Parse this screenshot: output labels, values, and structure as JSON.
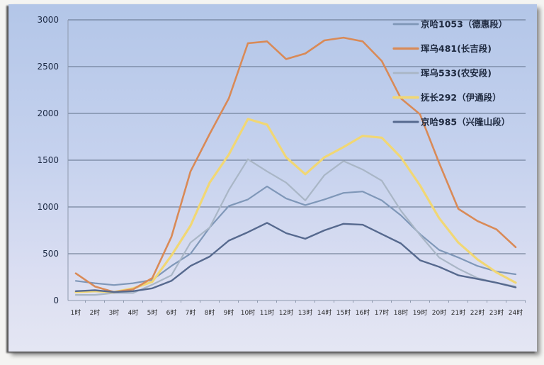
{
  "chart_data": {
    "type": "line",
    "title": "",
    "xlabel": "",
    "ylabel": "",
    "ylim": [
      0,
      3000
    ],
    "yticks": [
      0,
      500,
      1000,
      1500,
      2000,
      2500,
      3000
    ],
    "grid": true,
    "legend_position": "top-right (inside plot)",
    "categories": [
      "1时",
      "2时",
      "3时",
      "4时",
      "5时",
      "6时",
      "7时",
      "8时",
      "9时",
      "10时",
      "11时",
      "12时",
      "13时",
      "14时",
      "15时",
      "16时",
      "17时",
      "18时",
      "19时",
      "20时",
      "21时",
      "22时",
      "23时",
      "24时"
    ],
    "series": [
      {
        "name": "京哈1053（德惠段）",
        "color": "#7f97b8",
        "width": 2.2,
        "values": [
          210,
          185,
          165,
          185,
          220,
          370,
          500,
          780,
          1010,
          1080,
          1220,
          1090,
          1020,
          1080,
          1150,
          1165,
          1070,
          910,
          710,
          540,
          460,
          370,
          310,
          280
        ]
      },
      {
        "name": "珲乌481(长吉段)",
        "color": "#d98a57",
        "width": 2.6,
        "values": [
          290,
          150,
          90,
          120,
          240,
          680,
          1380,
          1780,
          2160,
          2750,
          2770,
          2580,
          2640,
          2780,
          2810,
          2770,
          2560,
          2160,
          1990,
          1470,
          980,
          850,
          760,
          570
        ]
      },
      {
        "name": "珲乌533(农安段)",
        "color": "#a9b6c6",
        "width": 2.2,
        "values": [
          60,
          60,
          80,
          80,
          170,
          270,
          620,
          780,
          1180,
          1510,
          1380,
          1260,
          1070,
          1340,
          1490,
          1400,
          1280,
          960,
          700,
          460,
          340,
          240,
          190,
          150
        ]
      },
      {
        "name": "抚长292（伊通段）",
        "color": "#f1d774",
        "width": 3.2,
        "values": [
          90,
          100,
          90,
          130,
          200,
          480,
          800,
          1260,
          1560,
          1940,
          1880,
          1530,
          1350,
          1530,
          1640,
          1760,
          1740,
          1530,
          1230,
          880,
          620,
          440,
          300,
          190
        ]
      },
      {
        "name": "京哈985（兴隆山段）",
        "color": "#56698e",
        "width": 2.4,
        "values": [
          100,
          110,
          90,
          100,
          130,
          210,
          370,
          470,
          640,
          730,
          830,
          720,
          660,
          750,
          820,
          810,
          710,
          610,
          430,
          360,
          270,
          230,
          190,
          140
        ]
      }
    ]
  }
}
